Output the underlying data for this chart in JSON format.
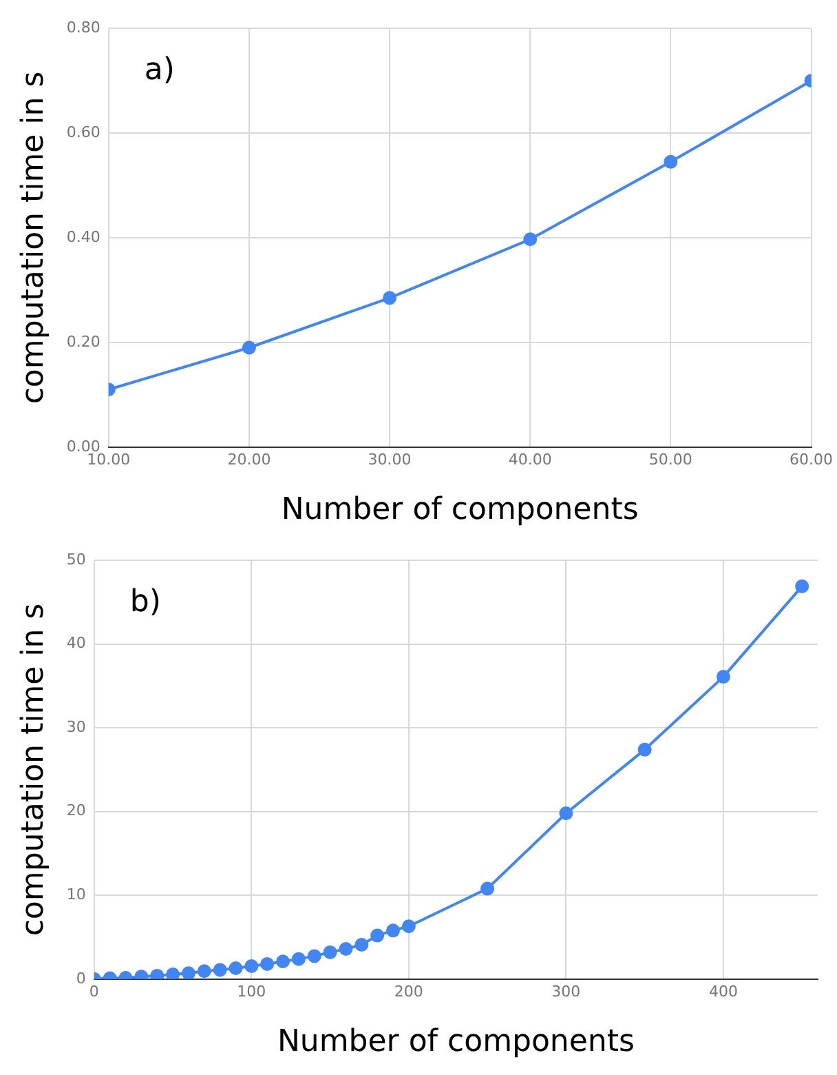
{
  "chart_data": [
    {
      "type": "line",
      "xlabel": "Number of components",
      "ylabel": "computation time in s",
      "annotations": [
        "a)"
      ],
      "x": [
        10,
        20,
        30,
        40,
        50,
        60
      ],
      "series": [
        {
          "color": "#4285f4",
          "values": [
            0.11,
            0.19,
            0.285,
            0.397,
            0.545,
            0.7
          ]
        }
      ],
      "xlim": [
        10,
        60
      ],
      "xticks": [
        {
          "value": 10,
          "label": "10.00"
        },
        {
          "value": 20,
          "label": "20.00"
        },
        {
          "value": 30,
          "label": "30.00"
        },
        {
          "value": 40,
          "label": "40.00"
        },
        {
          "value": 50,
          "label": "50.00"
        },
        {
          "value": 60,
          "label": "60.00"
        }
      ],
      "ylim": [
        0,
        0.8
      ],
      "yticks": [
        {
          "value": 0,
          "label": "0.00"
        },
        {
          "value": 0.2,
          "label": "0.20"
        },
        {
          "value": 0.4,
          "label": "0.40"
        },
        {
          "value": 0.6,
          "label": "0.60"
        },
        {
          "value": 0.8,
          "label": "0.80"
        }
      ],
      "grid": true,
      "marker": "circle",
      "line_style": "solid",
      "legend": false
    },
    {
      "type": "line",
      "xlabel": "Number of components",
      "ylabel": "computation time in s",
      "annotations": [
        "b)"
      ],
      "x": [
        0,
        10,
        20,
        30,
        40,
        50,
        60,
        70,
        80,
        90,
        100,
        110,
        120,
        130,
        140,
        150,
        160,
        170,
        180,
        190,
        200,
        250,
        300,
        350,
        400,
        450
      ],
      "series": [
        {
          "color": "#4285f4",
          "values": [
            0,
            0.1,
            0.15,
            0.3,
            0.4,
            0.55,
            0.7,
            0.95,
            1.1,
            1.3,
            1.55,
            1.8,
            2.1,
            2.4,
            2.75,
            3.2,
            3.6,
            4.1,
            5.2,
            5.8,
            6.3,
            10.8,
            19.8,
            27.4,
            36.1,
            46.9
          ]
        }
      ],
      "xlim": [
        0,
        460
      ],
      "xticks": [
        0,
        100,
        200,
        300,
        400
      ],
      "ylim": [
        0,
        50
      ],
      "yticks": [
        0,
        10,
        20,
        30,
        40,
        50
      ],
      "grid": true,
      "marker": "circle",
      "line_style": "solid",
      "legend": false
    }
  ]
}
